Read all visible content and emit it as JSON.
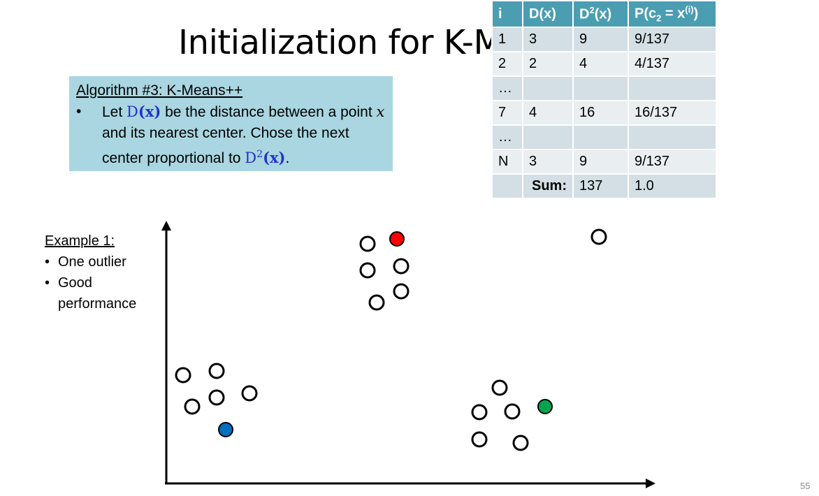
{
  "slide": {
    "title": "Initialization for K-M",
    "page_number": "55"
  },
  "algorithm": {
    "heading": "Algorithm #3: K-Means++",
    "bullet_marker": "•",
    "text_1": "Let ",
    "dx_d": "D",
    "dx_open": "(",
    "dx_x": "x",
    "dx_close": ")",
    "text_2": " be the distance between a point ",
    "var_x": "x",
    "text_3": " and its nearest center. Chose the next center proportional to ",
    "d2_d": "D",
    "d2_sup": "2",
    "d2_open": "(",
    "d2_x": "x",
    "d2_close": ")",
    "text_4": "."
  },
  "table": {
    "headers": {
      "i": "i",
      "dx": "D(x)",
      "d2_base": "D",
      "d2_sup": "2",
      "d2_arg": "(x)",
      "p_open": "P(c",
      "p_sub": "2",
      "p_eq": " = x",
      "p_sup": "(i)",
      "p_close": ")"
    },
    "rows": [
      {
        "i": "1",
        "dx": "3",
        "d2": "9",
        "p": "9/137"
      },
      {
        "i": "2",
        "dx": "2",
        "d2": "4",
        "p": "4/137"
      },
      {
        "i": "…",
        "dx": "",
        "d2": "",
        "p": ""
      },
      {
        "i": "7",
        "dx": "4",
        "d2": "16",
        "p": "16/137"
      },
      {
        "i": "…",
        "dx": "",
        "d2": "",
        "p": ""
      },
      {
        "i": "N",
        "dx": "3",
        "d2": "9",
        "p": "9/137"
      }
    ],
    "sum": {
      "i": "",
      "label": "Sum:",
      "d2": "137",
      "p": "1.0"
    }
  },
  "example": {
    "heading": "Example 1:",
    "bullet_marker": "•",
    "items": [
      "One outlier",
      "Good",
      "performance"
    ]
  },
  "plot": {
    "axis_color": "#000000",
    "point_colors": {
      "open": "#ffffff",
      "red": "#ff0000",
      "green": "#00a550",
      "blue": "#0070c0"
    }
  }
}
